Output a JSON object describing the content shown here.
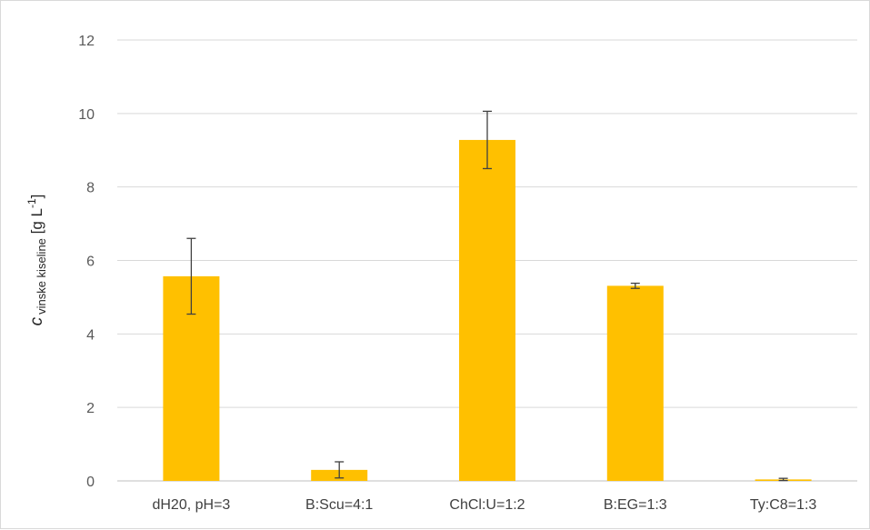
{
  "chart_data": {
    "type": "bar",
    "categories": [
      "dH20, pH=3",
      "B:Scu=4:1",
      "ChCl:U=1:2",
      "B:EG=1:3",
      "Ty:C8=1:3"
    ],
    "values": [
      5.57,
      0.3,
      9.28,
      5.31,
      0.04
    ],
    "errors": [
      1.03,
      0.22,
      0.78,
      0.07,
      0.03
    ],
    "ylim": [
      0,
      12
    ],
    "yticks": [
      0,
      2,
      4,
      6,
      8,
      10,
      12
    ],
    "ylabel": {
      "symbol": "c",
      "subscript": "vinske kiseline",
      "unit_open": " [g L",
      "unit_sup": "-1",
      "unit_close": "]"
    },
    "bar_color": "#ffc000",
    "grid": true
  }
}
